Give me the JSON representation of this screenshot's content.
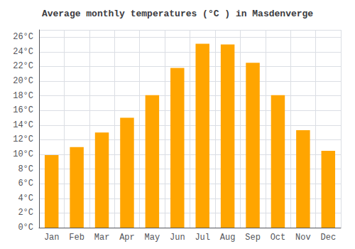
{
  "chart_data": {
    "type": "bar",
    "title": "Average monthly temperatures (°C ) in Masdenverge",
    "categories": [
      "Jan",
      "Feb",
      "Mar",
      "Apr",
      "May",
      "Jun",
      "Jul",
      "Aug",
      "Sep",
      "Oct",
      "Nov",
      "Dec"
    ],
    "values": [
      9.9,
      11.0,
      13.0,
      15.0,
      18.1,
      21.8,
      25.1,
      25.0,
      22.5,
      18.1,
      13.3,
      10.5
    ],
    "color": "#FFA500",
    "ylim": [
      0,
      27
    ],
    "yticks": [
      {
        "value": 0,
        "label": "0°C"
      },
      {
        "value": 2,
        "label": "2°C"
      },
      {
        "value": 4,
        "label": "4°C"
      },
      {
        "value": 6,
        "label": "6°C"
      },
      {
        "value": 8,
        "label": "8°C"
      },
      {
        "value": 10,
        "label": "10°C"
      },
      {
        "value": 12,
        "label": "12°C"
      },
      {
        "value": 14,
        "label": "14°C"
      },
      {
        "value": 16,
        "label": "16°C"
      },
      {
        "value": 18,
        "label": "18°C"
      },
      {
        "value": 20,
        "label": "20°C"
      },
      {
        "value": 22,
        "label": "22°C"
      },
      {
        "value": 24,
        "label": "24°C"
      },
      {
        "value": 26,
        "label": "26°C"
      }
    ],
    "grid": true
  }
}
